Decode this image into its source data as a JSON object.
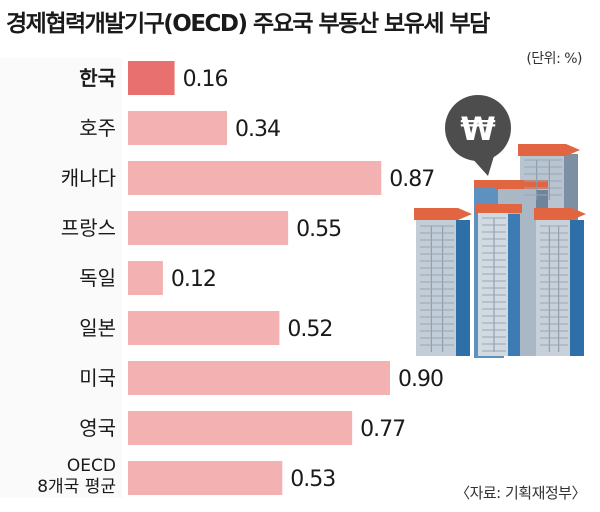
{
  "chart_data": {
    "type": "bar",
    "orientation": "horizontal",
    "title": "경제협력개발기구(OECD) 주요국 부동산 보유세 부담",
    "unit": "(단위: %)",
    "source": "〈자료: 기획재정부〉",
    "categories": [
      [
        "한국"
      ],
      [
        "호주"
      ],
      [
        "캐나다"
      ],
      [
        "프랑스"
      ],
      [
        "독일"
      ],
      [
        "일본"
      ],
      [
        "미국"
      ],
      [
        "영국"
      ],
      [
        "OECD",
        "8개국 평균"
      ]
    ],
    "values": [
      0.16,
      0.34,
      0.87,
      0.55,
      0.12,
      0.52,
      0.9,
      0.77,
      0.53
    ],
    "value_labels": [
      "0.16",
      "0.34",
      "0.87",
      "0.55",
      "0.12",
      "0.52",
      "0.90",
      "0.77",
      "0.53"
    ],
    "highlight_index": 0,
    "xlim": [
      0,
      0.9
    ],
    "grid": false,
    "colors": {
      "highlight": "#e8716f",
      "bar": "#f3b1b1",
      "label_bg": "#fafafa"
    }
  },
  "illustration": {
    "icon": "won-currency-apartment-icon",
    "won_symbol": "₩"
  }
}
